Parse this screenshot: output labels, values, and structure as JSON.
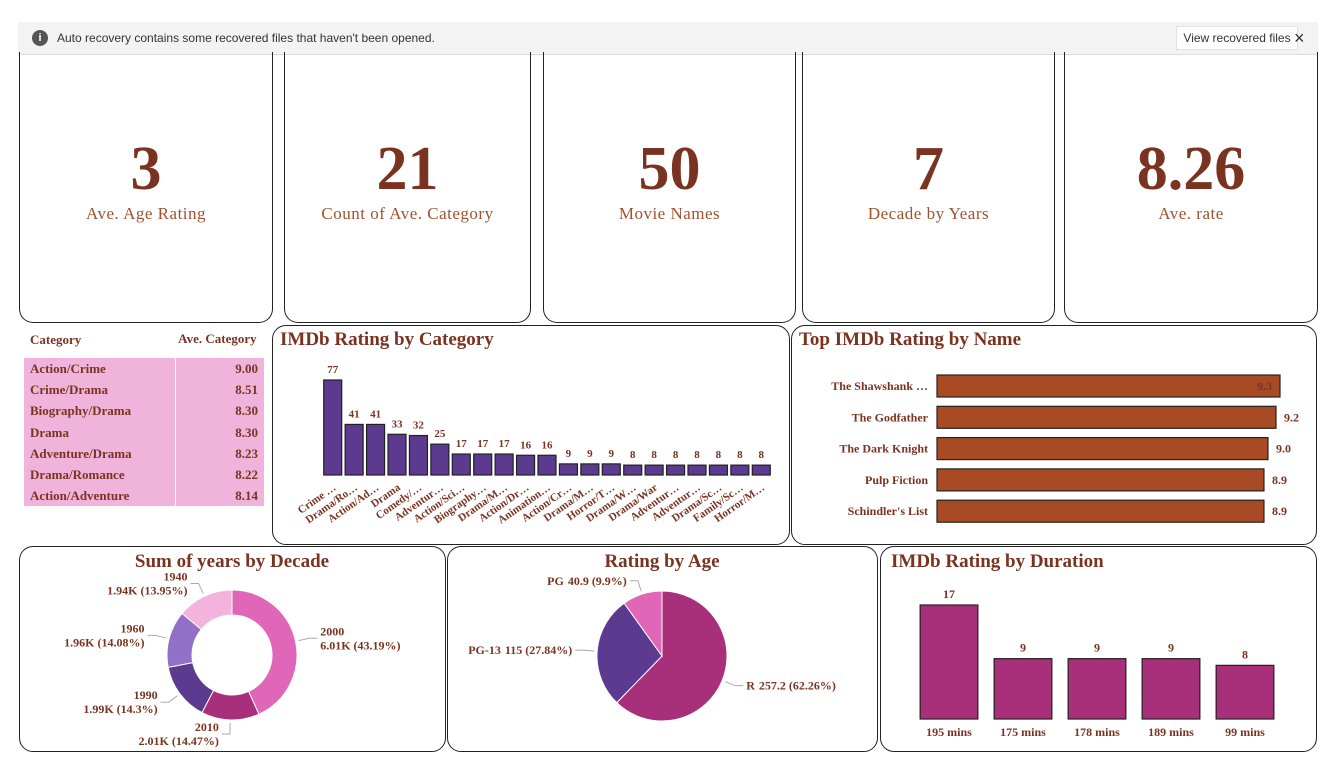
{
  "notification": {
    "message": "Auto recovery contains some recovered files that haven't been opened.",
    "button": "View recovered files"
  },
  "kpis": [
    {
      "value": 3,
      "label": "Ave. Age Rating"
    },
    {
      "value": 21,
      "label": "Count of Ave. Category"
    },
    {
      "value": 50,
      "label": "Movie Names"
    },
    {
      "value": 7,
      "label": "Decade by Years"
    },
    {
      "value": 8.26,
      "label": "Ave. rate"
    }
  ],
  "table": {
    "header": [
      "Category",
      "Ave. Category"
    ],
    "rows": [
      [
        "Action/Crime",
        "9.00"
      ],
      [
        "Crime/Drama",
        "8.51"
      ],
      [
        "Biography/Drama",
        "8.30"
      ],
      [
        "Drama",
        "8.30"
      ],
      [
        "Adventure/Drama",
        "8.23"
      ],
      [
        "Drama/Romance",
        "8.22"
      ],
      [
        "Action/Adventure",
        "8.14"
      ]
    ]
  },
  "chart_data": [
    {
      "type": "bar",
      "title": "IMDb Rating by Category",
      "color": "#5b3a8f",
      "categories": [
        "Crime …",
        "Drama/Ro…",
        "Action/Ad…",
        "Drama",
        "Comedy/…",
        "Adventur…",
        "Action/Sci…",
        "Biography…",
        "Drama/M…",
        "Action/Dr…",
        "Animation…",
        "Action/Cr…",
        "Drama/M…",
        "Horror/T…",
        "Drama/W…",
        "Drama/War",
        "Adventur…",
        "Adventur…",
        "Drama/Sc…",
        "Family/Sc…",
        "Horror/M…"
      ],
      "values": [
        77,
        41,
        41,
        33,
        32,
        25,
        17,
        17,
        17,
        16,
        16,
        9,
        9,
        9,
        8,
        8,
        8,
        8,
        8,
        8,
        8
      ]
    },
    {
      "type": "barh",
      "title": "Top IMDb Rating by Name",
      "color": "#a84b25",
      "categories": [
        "The Shawshank …",
        "The Godfather",
        "The Dark Knight",
        "Pulp Fiction",
        "Schindler's List"
      ],
      "values": [
        9.3,
        9.2,
        9.0,
        8.9,
        8.9
      ],
      "value_labels": [
        "9.3",
        "9.2",
        "9.0",
        "8.9",
        "8.9"
      ],
      "xlim": [
        0.75,
        9.3
      ]
    },
    {
      "type": "donut",
      "title": "Sum of years by Decade",
      "categories": [
        "2000",
        "2010",
        "1990",
        "1960",
        "1940"
      ],
      "values": [
        6010,
        2010,
        1990,
        1960,
        1940
      ],
      "value_labels": [
        "6.01K (43.19%)",
        "2.01K (14.47%)",
        "1.99K (14.3%)",
        "1.96K (14.08%)",
        "1.94K (13.95%)"
      ],
      "colors": [
        "#e066b8",
        "#a8307a",
        "#5b3a8f",
        "#9370c8",
        "#f2b3dc"
      ]
    },
    {
      "type": "pie",
      "title": "Rating by Age",
      "categories": [
        "R",
        "PG-13",
        "PG"
      ],
      "values": [
        257.2,
        115,
        40.9
      ],
      "value_labels": [
        "257.2 (62.26%)",
        "115 (27.84%)",
        "40.9 (9.9%)"
      ],
      "colors": [
        "#a8307a",
        "#5b3a8f",
        "#e066b8"
      ]
    },
    {
      "type": "bar",
      "title": "IMDb Rating by Duration",
      "color": "#a8307a",
      "categories": [
        "195 mins",
        "175 mins",
        "178 mins",
        "189 mins",
        "99 mins"
      ],
      "values": [
        17,
        9,
        9,
        9,
        8
      ]
    }
  ]
}
